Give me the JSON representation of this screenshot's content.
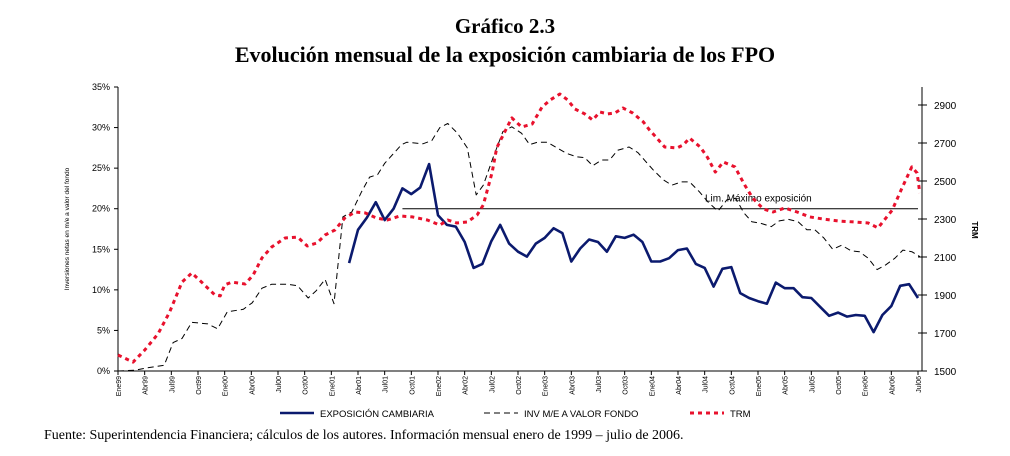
{
  "header": {
    "title": "Gráfico 2.3",
    "subtitle": "Evolución mensual de la exposición cambiaria de los FPO"
  },
  "source": "Fuente: Superintendencia Financiera; cálculos de los autores. Información mensual enero de 1999 – julio de 2006.",
  "chart_data": {
    "type": "line",
    "title": "Evolución mensual de la exposición cambiaria de los FPO",
    "x_unit": "months since Ene99",
    "xlim": [
      0,
      90
    ],
    "x_tick_labels": [
      "Ene99",
      "Abr99",
      "Jul99",
      "Oct99",
      "Ene00",
      "Abr00",
      "Jul00",
      "Oct00",
      "Ene01",
      "Abr01",
      "Jul01",
      "Oct01",
      "Ene02",
      "Abr02",
      "Jul02",
      "Oct02",
      "Ene03",
      "Abr03",
      "Jul03",
      "Oct03",
      "Ene04",
      "Abr04",
      "Jul04",
      "Oct04",
      "Ene05",
      "Abr05",
      "Jul05",
      "Oct05",
      "Ene06",
      "Abr06",
      "Jul06"
    ],
    "ylabel": "Inversiones netas en m/e a valor del fondo",
    "ylim": [
      0,
      35
    ],
    "y_tick_labels": [
      "0%",
      "5%",
      "10%",
      "15%",
      "20%",
      "25%",
      "30%",
      "35%"
    ],
    "y2label": "TRM",
    "y2lim": [
      1500,
      2900
    ],
    "y2_tick_labels": [
      "1500",
      "1700",
      "1900",
      "2100",
      "2300",
      "2500",
      "2700",
      "2900"
    ],
    "annotation": {
      "text": "Lim. Máximo exposición",
      "value": 20,
      "from_month": 32,
      "to_month": 90
    },
    "legend": {
      "position": "bottom"
    },
    "series": [
      {
        "name": "EXPOSICIÓN CAMBIARIA",
        "axis": "left",
        "color": "#0b1a6e",
        "style": "solid",
        "start_month": 26,
        "values": [
          13.3,
          17.4,
          18.9,
          20.8,
          18.6,
          20.0,
          22.5,
          21.8,
          22.6,
          25.5,
          19.2,
          18.0,
          17.8,
          15.9,
          12.7,
          13.2,
          16.0,
          18.0,
          15.7,
          14.7,
          14.1,
          15.7,
          16.4,
          17.6,
          17.0,
          13.5,
          15.1,
          16.2,
          15.9,
          14.7,
          16.6,
          16.4,
          16.8,
          15.9,
          13.5,
          13.5,
          13.9,
          14.9,
          15.1,
          13.2,
          12.7,
          10.4,
          12.6,
          12.8,
          9.6,
          9.0,
          8.6,
          8.3,
          10.9,
          10.2,
          10.2,
          9.1,
          9.0,
          7.9,
          6.8,
          7.2,
          6.7,
          6.9,
          6.8,
          4.8,
          6.9,
          8.0,
          10.5,
          10.7,
          9.0
        ]
      },
      {
        "name": "INV M/E A VALOR FONDO",
        "axis": "left",
        "color": "#000000",
        "style": "dashed",
        "points": [
          [
            0,
            0.0
          ],
          [
            1.9,
            0.1
          ],
          [
            3.3,
            0.4
          ],
          [
            5.2,
            0.7
          ],
          [
            6.2,
            3.5
          ],
          [
            7.2,
            4.0
          ],
          [
            8.3,
            6.0
          ],
          [
            10.1,
            5.8
          ],
          [
            11.2,
            5.2
          ],
          [
            12.3,
            7.3
          ],
          [
            14.1,
            7.6
          ],
          [
            15.1,
            8.4
          ],
          [
            16.2,
            10.2
          ],
          [
            17.3,
            10.7
          ],
          [
            19.0,
            10.7
          ],
          [
            20.2,
            10.5
          ],
          [
            21.4,
            9.0
          ],
          [
            22.3,
            9.9
          ],
          [
            23.3,
            11.3
          ],
          [
            24.3,
            8.3
          ],
          [
            25.3,
            19.0
          ],
          [
            26.3,
            19.6
          ],
          [
            27.4,
            22.1
          ],
          [
            28.3,
            23.9
          ],
          [
            29.2,
            24.2
          ],
          [
            30,
            25.6
          ],
          [
            31.9,
            27.9
          ],
          [
            32.5,
            28.2
          ],
          [
            34.3,
            28.0
          ],
          [
            35.3,
            28.4
          ],
          [
            36.2,
            30.0
          ],
          [
            37.1,
            30.5
          ],
          [
            38.2,
            29.3
          ],
          [
            39.3,
            27.5
          ],
          [
            40.3,
            21.7
          ],
          [
            41.1,
            22.9
          ],
          [
            42.2,
            26.3
          ],
          [
            43.3,
            29.5
          ],
          [
            44.3,
            30.1
          ],
          [
            45.4,
            29.3
          ],
          [
            46.3,
            27.9
          ],
          [
            47.2,
            28.2
          ],
          [
            48.3,
            28.2
          ],
          [
            49.4,
            27.5
          ],
          [
            50.5,
            26.8
          ],
          [
            51.6,
            26.4
          ],
          [
            52.5,
            26.3
          ],
          [
            53.4,
            25.3
          ],
          [
            54.4,
            26.0
          ],
          [
            55.3,
            26.0
          ],
          [
            56.2,
            27.2
          ],
          [
            57.5,
            27.6
          ],
          [
            58.5,
            26.9
          ],
          [
            59.3,
            25.9
          ],
          [
            60.2,
            24.8
          ],
          [
            61.3,
            23.6
          ],
          [
            62.3,
            22.9
          ],
          [
            63.4,
            23.3
          ],
          [
            64.3,
            23.3
          ],
          [
            65.4,
            22.1
          ],
          [
            66.4,
            20.8
          ],
          [
            67.5,
            19.7
          ],
          [
            68.5,
            21.1
          ],
          [
            69.5,
            21.3
          ],
          [
            70.4,
            19.5
          ],
          [
            71.3,
            18.4
          ],
          [
            72.3,
            18.2
          ],
          [
            73.5,
            17.8
          ],
          [
            74.4,
            18.5
          ],
          [
            75.4,
            18.7
          ],
          [
            76.5,
            18.4
          ],
          [
            77.5,
            17.4
          ],
          [
            78.4,
            17.4
          ],
          [
            79.4,
            16.4
          ],
          [
            80.4,
            15.0
          ],
          [
            81.4,
            15.5
          ],
          [
            82.5,
            14.8
          ],
          [
            83.4,
            14.7
          ],
          [
            84.4,
            13.9
          ],
          [
            85.4,
            12.5
          ],
          [
            86.4,
            13.1
          ],
          [
            87.4,
            13.9
          ],
          [
            88.3,
            14.9
          ],
          [
            89.3,
            14.7
          ],
          [
            90.2,
            14.1
          ]
        ]
      },
      {
        "name": "TRM",
        "axis": "right",
        "color": "#e8112d",
        "style": "dotted",
        "points": [
          [
            0,
            1584
          ],
          [
            1.7,
            1547
          ],
          [
            3.0,
            1610
          ],
          [
            4.5,
            1695
          ],
          [
            5.8,
            1810
          ],
          [
            7.2,
            1968
          ],
          [
            8.3,
            2016
          ],
          [
            9.4,
            1968
          ],
          [
            10.9,
            1900
          ],
          [
            11.5,
            1895
          ],
          [
            12.0,
            1953
          ],
          [
            12.8,
            1968
          ],
          [
            14.3,
            1958
          ],
          [
            15.2,
            2005
          ],
          [
            16.2,
            2095
          ],
          [
            17.3,
            2153
          ],
          [
            18.8,
            2200
          ],
          [
            20.2,
            2205
          ],
          [
            21.3,
            2158
          ],
          [
            22.4,
            2174
          ],
          [
            23.3,
            2216
          ],
          [
            24.4,
            2242
          ],
          [
            25.5,
            2305
          ],
          [
            26.7,
            2337
          ],
          [
            27.8,
            2332
          ],
          [
            29.1,
            2305
          ],
          [
            30.3,
            2295
          ],
          [
            31.7,
            2316
          ],
          [
            33.1,
            2311
          ],
          [
            34.8,
            2295
          ],
          [
            36.2,
            2268
          ],
          [
            37.1,
            2295
          ],
          [
            38.1,
            2279
          ],
          [
            39.3,
            2284
          ],
          [
            40.4,
            2321
          ],
          [
            41.1,
            2374
          ],
          [
            42.1,
            2547
          ],
          [
            42.6,
            2674
          ],
          [
            43.5,
            2758
          ],
          [
            44.3,
            2832
          ],
          [
            45.4,
            2784
          ],
          [
            46.6,
            2800
          ],
          [
            47.7,
            2889
          ],
          [
            48.6,
            2926
          ],
          [
            49.7,
            2958
          ],
          [
            50.6,
            2926
          ],
          [
            51.4,
            2879
          ],
          [
            52.5,
            2853
          ],
          [
            53.4,
            2821
          ],
          [
            54.2,
            2863
          ],
          [
            55.1,
            2853
          ],
          [
            55.9,
            2858
          ],
          [
            56.8,
            2884
          ],
          [
            57.9,
            2858
          ],
          [
            59.1,
            2811
          ],
          [
            59.8,
            2768
          ],
          [
            60.5,
            2732
          ],
          [
            61.5,
            2679
          ],
          [
            62.9,
            2674
          ],
          [
            63.6,
            2690
          ],
          [
            64.3,
            2726
          ],
          [
            65.5,
            2679
          ],
          [
            66.3,
            2626
          ],
          [
            67.2,
            2547
          ],
          [
            68.1,
            2600
          ],
          [
            69.4,
            2574
          ],
          [
            70.5,
            2479
          ],
          [
            71.4,
            2410
          ],
          [
            72.6,
            2353
          ],
          [
            73.7,
            2337
          ],
          [
            75.0,
            2358
          ],
          [
            76.4,
            2337
          ],
          [
            77.8,
            2311
          ],
          [
            79.3,
            2300
          ],
          [
            81.2,
            2289
          ],
          [
            82.9,
            2284
          ],
          [
            84.4,
            2279
          ],
          [
            85.5,
            2253
          ],
          [
            87.1,
            2347
          ],
          [
            88.2,
            2463
          ],
          [
            89.3,
            2574
          ],
          [
            89.9,
            2542
          ],
          [
            90.2,
            2437
          ]
        ]
      }
    ]
  }
}
